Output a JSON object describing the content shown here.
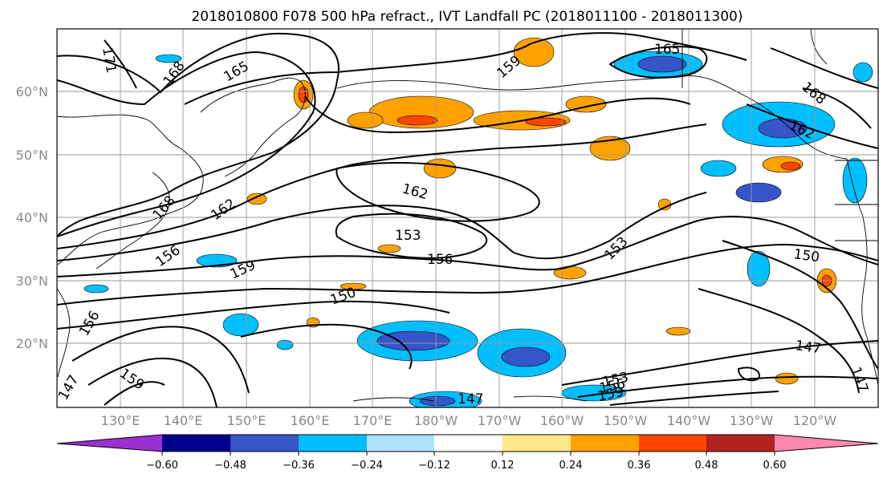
{
  "title": "2018010800 F078 500 hPa refract., IVT Landfall PC (2018011100 - 2018011300)",
  "latitude_labels": [
    "60°N",
    "50°N",
    "40°N",
    "30°N",
    "20°N"
  ],
  "longitude_labels": [
    "130°E",
    "140°E",
    "150°E",
    "160°E",
    "170°E",
    "180°W",
    "170°W",
    "160°W",
    "150°W",
    "140°W",
    "130°W",
    "120°W"
  ],
  "contour_labels": [
    "171",
    "168",
    "165",
    "165",
    "159",
    "168",
    "162",
    "162",
    "168",
    "162",
    "156",
    "153",
    "156",
    "159",
    "150",
    "153",
    "150",
    "147",
    "159",
    "147",
    "153",
    "156",
    "159",
    "147",
    "147",
    "156"
  ],
  "colorbar": {
    "ticks": [
      "−0.60",
      "−0.48",
      "−0.36",
      "−0.24",
      "−0.12",
      "0.12",
      "0.24",
      "0.36",
      "0.48",
      "0.60"
    ],
    "colors": [
      "#9b30d0",
      "#00008b",
      "#3655c8",
      "#00bfff",
      "#b0e2ff",
      "#ffffff",
      "#ffe88a",
      "#ffa200",
      "#ff4500",
      "#b22222",
      "#ff88b0"
    ]
  }
}
